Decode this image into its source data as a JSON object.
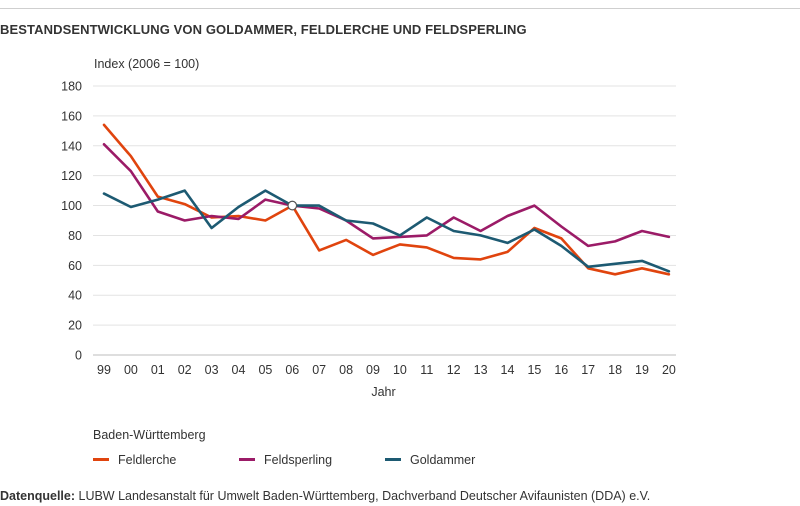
{
  "chart_data": {
    "type": "line",
    "title": "BESTANDSENTWICKLUNG VON GOLDAMMER, FELDLERCHE UND FELDSPERLING",
    "ylabel": "Index (2006 = 100)",
    "xlabel": "Jahr",
    "ylim": [
      0,
      180
    ],
    "yticks": [
      0,
      20,
      40,
      60,
      80,
      100,
      120,
      140,
      160,
      180
    ],
    "grid": true,
    "categories": [
      "99",
      "00",
      "01",
      "02",
      "03",
      "04",
      "05",
      "06",
      "07",
      "08",
      "09",
      "10",
      "11",
      "12",
      "13",
      "14",
      "15",
      "16",
      "17",
      "18",
      "19",
      "20"
    ],
    "reference_point": {
      "category": "06",
      "value": 100
    },
    "legend_title": "Baden-Württemberg",
    "legend_position": "bottom-left",
    "series": [
      {
        "name": "Feldlerche",
        "color": "#e0440e",
        "values": [
          154,
          133,
          106,
          101,
          92,
          93,
          90,
          100,
          70,
          77,
          67,
          74,
          72,
          65,
          64,
          69,
          85,
          78,
          58,
          54,
          58,
          54
        ]
      },
      {
        "name": "Feldsperling",
        "color": "#9b1b67",
        "values": [
          141,
          123,
          96,
          90,
          93,
          91,
          104,
          100,
          98,
          90,
          78,
          79,
          80,
          92,
          83,
          93,
          100,
          86,
          73,
          76,
          83,
          79
        ]
      },
      {
        "name": "Goldammer",
        "color": "#1d5a72",
        "values": [
          108,
          99,
          104,
          110,
          85,
          99,
          110,
          100,
          100,
          90,
          88,
          80,
          92,
          83,
          80,
          75,
          84,
          73,
          59,
          61,
          63,
          56
        ]
      }
    ]
  },
  "source": {
    "label": "Datenquelle:",
    "text": " LUBW Landesanstalt für Umwelt Baden-Württemberg,  Dachverband Deutscher Avifaunisten (DDA) e.V."
  }
}
